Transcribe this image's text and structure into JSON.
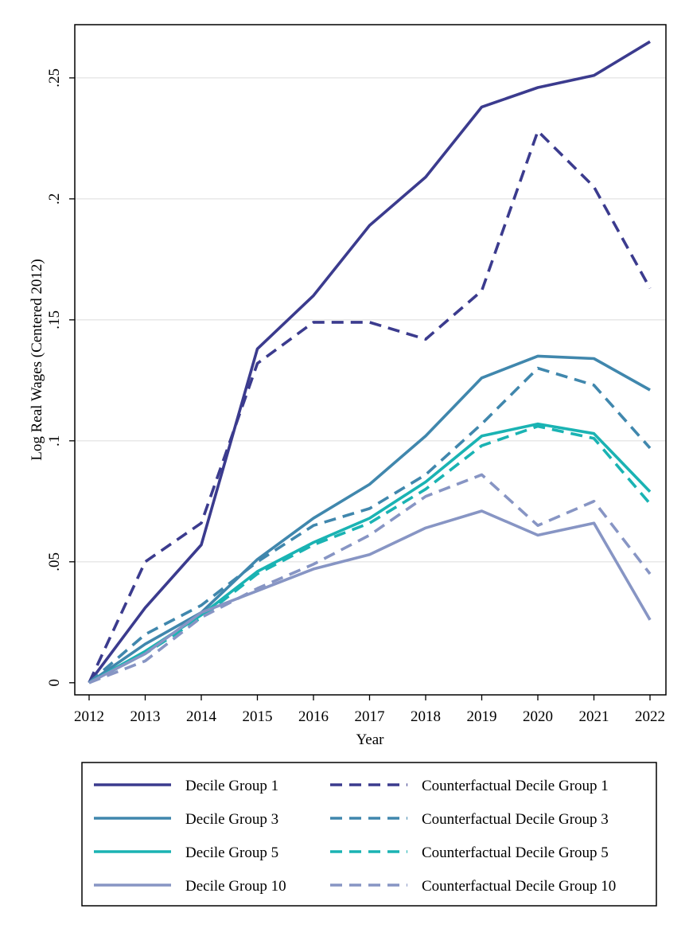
{
  "chart_data": {
    "type": "line",
    "title": "",
    "xlabel": "Year",
    "ylabel": "Log Real Wages (Centered 2012)",
    "x": [
      "2012",
      "2013",
      "2014",
      "2015",
      "2016",
      "2017",
      "2018",
      "2019",
      "2020",
      "2021",
      "2022"
    ],
    "ylim": [
      -0.005,
      0.272
    ],
    "yticks": [
      {
        "value": 0,
        "label": "0"
      },
      {
        "value": 0.05,
        "label": ".05"
      },
      {
        "value": 0.1,
        "label": ".1"
      },
      {
        "value": 0.15,
        "label": ".15"
      },
      {
        "value": 0.2,
        "label": ".2"
      },
      {
        "value": 0.25,
        "label": ".25"
      }
    ],
    "grid": true,
    "legend_position": "bottom",
    "series": [
      {
        "name": "Decile Group 1",
        "color": "#3b3b8e",
        "dashed": false,
        "values": [
          0,
          0.031,
          0.057,
          0.138,
          0.16,
          0.189,
          0.209,
          0.238,
          0.246,
          0.251,
          0.265
        ]
      },
      {
        "name": "Counterfactual Decile Group 1",
        "color": "#3b3b8e",
        "dashed": true,
        "values": [
          0,
          0.05,
          0.066,
          0.132,
          0.149,
          0.149,
          0.142,
          0.162,
          0.228,
          0.205,
          0.163
        ]
      },
      {
        "name": "Decile Group 3",
        "color": "#4087ad",
        "dashed": false,
        "values": [
          0,
          0.016,
          0.029,
          0.051,
          0.068,
          0.082,
          0.102,
          0.126,
          0.135,
          0.134,
          0.121
        ]
      },
      {
        "name": "Counterfactual Decile Group 3",
        "color": "#4087ad",
        "dashed": true,
        "values": [
          0,
          0.02,
          0.032,
          0.05,
          0.065,
          0.072,
          0.086,
          0.107,
          0.13,
          0.123,
          0.097
        ]
      },
      {
        "name": "Decile Group 5",
        "color": "#1ab3b3",
        "dashed": false,
        "values": [
          0,
          0.013,
          0.028,
          0.046,
          0.058,
          0.068,
          0.083,
          0.102,
          0.107,
          0.103,
          0.079
        ]
      },
      {
        "name": "Counterfactual Decile Group 5",
        "color": "#1ab3b3",
        "dashed": true,
        "values": [
          0,
          0.012,
          0.027,
          0.045,
          0.057,
          0.066,
          0.08,
          0.098,
          0.106,
          0.101,
          0.074
        ]
      },
      {
        "name": "Decile Group 10",
        "color": "#8795c4",
        "dashed": false,
        "values": [
          0,
          0.012,
          0.029,
          0.038,
          0.047,
          0.053,
          0.064,
          0.071,
          0.061,
          0.066,
          0.026
        ]
      },
      {
        "name": "Counterfactual Decile Group 10",
        "color": "#8795c4",
        "dashed": true,
        "values": [
          0,
          0.009,
          0.027,
          0.039,
          0.049,
          0.061,
          0.077,
          0.086,
          0.065,
          0.075,
          0.045
        ]
      }
    ]
  }
}
